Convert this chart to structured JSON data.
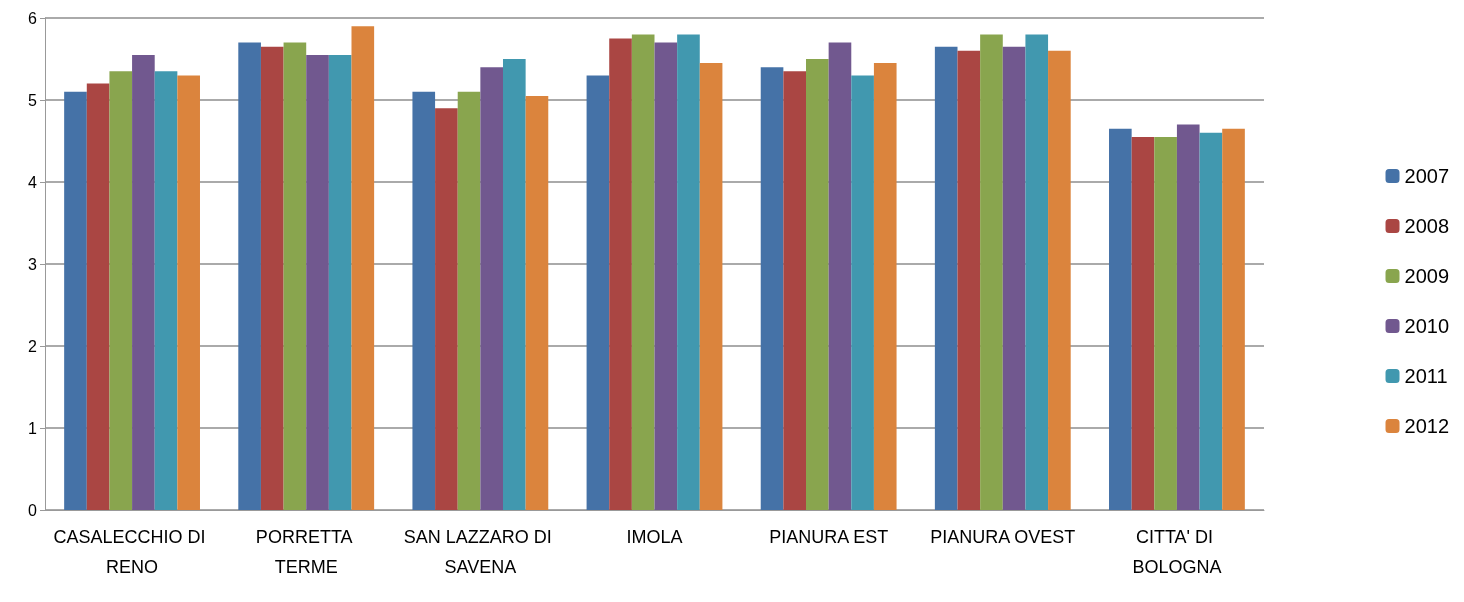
{
  "chart_data": {
    "type": "bar",
    "categories": [
      "CASALECCHIO DI RENO",
      "PORRETTA TERME",
      "SAN LAZZARO DI SAVENA",
      "IMOLA",
      "PIANURA EST",
      "PIANURA OVEST",
      "CITTA' DI BOLOGNA"
    ],
    "series": [
      {
        "name": "2007",
        "color": "#4572a7",
        "values": [
          5.1,
          5.7,
          5.1,
          5.3,
          5.4,
          5.65,
          4.65
        ]
      },
      {
        "name": "2008",
        "color": "#aa4643",
        "values": [
          5.2,
          5.65,
          4.9,
          5.75,
          5.35,
          5.6,
          4.55
        ]
      },
      {
        "name": "2009",
        "color": "#89a54e",
        "values": [
          5.35,
          5.7,
          5.1,
          5.8,
          5.5,
          5.8,
          4.55
        ]
      },
      {
        "name": "2010",
        "color": "#71588f",
        "values": [
          5.55,
          5.55,
          5.4,
          5.7,
          5.7,
          5.65,
          4.7
        ]
      },
      {
        "name": "2011",
        "color": "#4198af",
        "values": [
          5.35,
          5.55,
          5.5,
          5.8,
          5.3,
          5.8,
          4.6
        ]
      },
      {
        "name": "2012",
        "color": "#db843d",
        "values": [
          5.3,
          5.9,
          5.05,
          5.45,
          5.45,
          5.6,
          4.65
        ]
      }
    ],
    "ylim": [
      0,
      6
    ],
    "yticks": [
      0,
      1,
      2,
      3,
      4,
      5,
      6
    ],
    "grid": "y",
    "legend": "right"
  }
}
